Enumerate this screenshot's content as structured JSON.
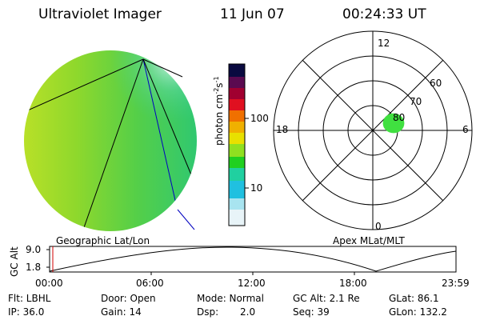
{
  "header": {
    "instrument": "Ultraviolet Imager",
    "date": "11 Jun 07",
    "time": "00:24:33 UT"
  },
  "colorbar": {
    "label": "photon cm",
    "label_sup1": "-2",
    "label_mid": "s",
    "label_sup2": "-1",
    "ticks": [
      "100",
      "10"
    ],
    "colors": [
      "#0a0a40",
      "#5a0a50",
      "#a00030",
      "#e01020",
      "#f07000",
      "#f0b000",
      "#e8e000",
      "#90e020",
      "#20d020",
      "#20d0a0",
      "#20c0e0",
      "#e8f4f8"
    ]
  },
  "polar_plot": {
    "mlt_labels": {
      "top": "12",
      "left": "18",
      "right": "6",
      "bottom": "0"
    },
    "lat_labels": [
      "60",
      "70",
      "80"
    ],
    "spot_color": "#40e040"
  },
  "timeline": {
    "left_title": "Geographic Lat/Lon",
    "right_title": "Apex MLat/MLT",
    "y_axis_label": "GC Alt",
    "y_ticks": [
      "9.0",
      "1.8"
    ],
    "x_ticks": [
      "00:00",
      "06:00",
      "12:00",
      "18:00",
      "23:59"
    ],
    "marker_color": "#d00000"
  },
  "info": {
    "filter": "Flt: LBHL",
    "ip": "IP: 36.0",
    "door": "Door: Open",
    "gain": "Gain: 14",
    "mode": "Mode: Normal",
    "dsp_label": "Dsp:",
    "dsp_value": "2.0",
    "gc_alt": "GC Alt: 2.1 Re",
    "seq": "Seq: 39",
    "glat": "GLat:  86.1",
    "glon": "GLon: 132.2"
  }
}
